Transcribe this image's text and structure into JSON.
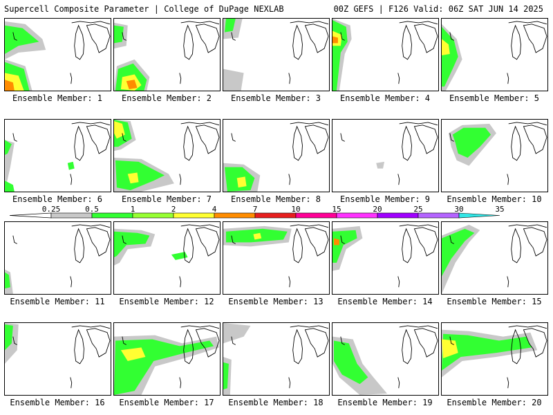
{
  "header": {
    "left_title": "Supercell Composite Parameter | College of DuPage NEXLAB",
    "right_title": "00Z GEFS | F126 Valid: 06Z SAT JUN 14 2025"
  },
  "member_prefix": "Ensemble Member: ",
  "members": [
    {
      "label": "Ensemble Member: 1"
    },
    {
      "label": "Ensemble Member: 2"
    },
    {
      "label": "Ensemble Member: 3"
    },
    {
      "label": "Ensemble Member: 4"
    },
    {
      "label": "Ensemble Member: 5"
    },
    {
      "label": "Ensemble Member: 6"
    },
    {
      "label": "Ensemble Member: 7"
    },
    {
      "label": "Ensemble Member: 8"
    },
    {
      "label": "Ensemble Member: 9"
    },
    {
      "label": "Ensemble Member: 10"
    },
    {
      "label": "Ensemble Member: 11"
    },
    {
      "label": "Ensemble Member: 12"
    },
    {
      "label": "Ensemble Member: 13"
    },
    {
      "label": "Ensemble Member: 14"
    },
    {
      "label": "Ensemble Member: 15"
    },
    {
      "label": "Ensemble Member: 16"
    },
    {
      "label": "Ensemble Member: 17"
    },
    {
      "label": "Ensemble Member: 18"
    },
    {
      "label": "Ensemble Member: 19"
    },
    {
      "label": "Ensemble Member: 20"
    }
  ],
  "legend": {
    "ticks": [
      "0.25",
      "0.5",
      "1",
      "2",
      "4",
      "7",
      "10",
      "15",
      "20",
      "25",
      "30",
      "35"
    ],
    "colors": [
      "#c8c8c8",
      "#32ff32",
      "#96ff32",
      "#ffff32",
      "#ff8c00",
      "#e61e1e",
      "#ff0096",
      "#ff32ff",
      "#a000ff",
      "#b464ff",
      "#32e6e6"
    ]
  }
}
